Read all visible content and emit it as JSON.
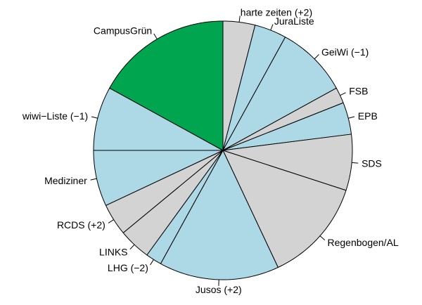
{
  "chart_data": {
    "type": "pie",
    "title": "",
    "start_angle_deg": 90,
    "direction": "clockwise",
    "colors": {
      "green": "#00a550",
      "blue": "#add8e6",
      "gray": "#d3d3d3",
      "border": "#000000"
    },
    "slices": [
      {
        "label": "harte zeiten (+2)",
        "value": 4.0,
        "color": "gray"
      },
      {
        "label": "JuraListe",
        "value": 4.0,
        "color": "blue"
      },
      {
        "label": "GeiWi (−1)",
        "value": 9.0,
        "color": "blue"
      },
      {
        "label": "FSB",
        "value": 2.0,
        "color": "gray"
      },
      {
        "label": "EPB",
        "value": 4.0,
        "color": "blue"
      },
      {
        "label": "SDS",
        "value": 7.0,
        "color": "gray"
      },
      {
        "label": "Regenbogen/AL",
        "value": 13.0,
        "color": "gray"
      },
      {
        "label": "Jusos (+2)",
        "value": 15.0,
        "color": "blue"
      },
      {
        "label": "LHG (−2)",
        "value": 2.0,
        "color": "blue"
      },
      {
        "label": "LINKS",
        "value": 4.0,
        "color": "gray"
      },
      {
        "label": "RCDS (+2)",
        "value": 4.0,
        "color": "gray"
      },
      {
        "label": "Mediziner",
        "value": 7.0,
        "color": "blue"
      },
      {
        "label": "wiwi−Liste (−1)",
        "value": 8.0,
        "color": "blue"
      },
      {
        "label": "CampusGrün",
        "value": 17.0,
        "color": "green"
      }
    ]
  }
}
